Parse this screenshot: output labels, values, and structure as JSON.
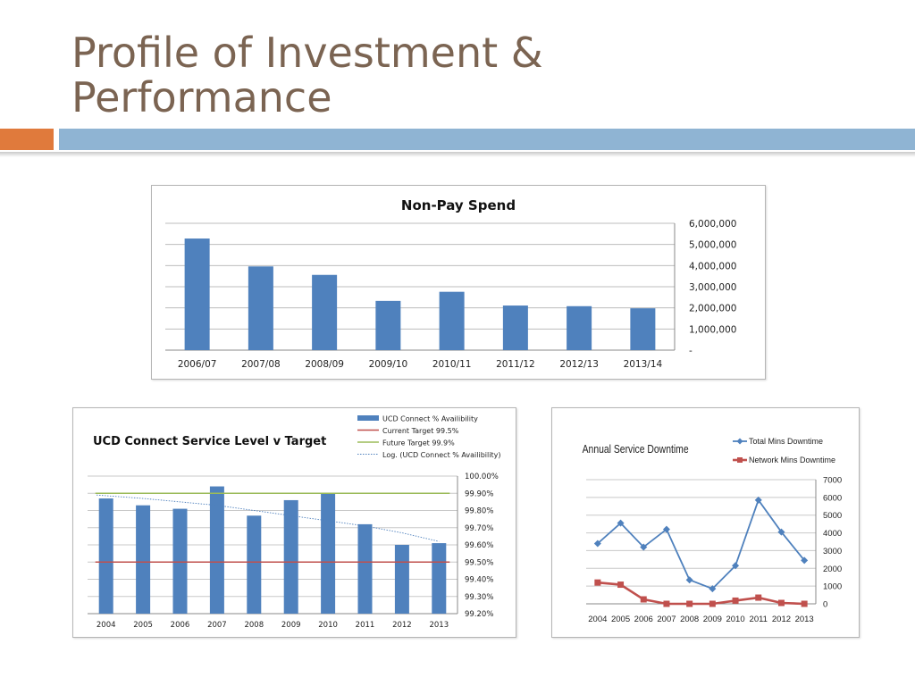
{
  "slide": {
    "title_line1": "Profile of Investment &",
    "title_line2": "Performance"
  },
  "colors": {
    "accent_orange": "#e07a3c",
    "accent_blue": "#8fb4d3",
    "bar_blue": "#4f81bd",
    "line_red": "#c0504d",
    "line_green": "#9bbb59",
    "title_brown": "#7b6452"
  },
  "chart_data": [
    {
      "type": "bar",
      "title": "Non-Pay Spend",
      "categories": [
        "2006/07",
        "2007/08",
        "2008/09",
        "2009/10",
        "2010/11",
        "2011/12",
        "2012/13",
        "2013/14"
      ],
      "values": [
        5280000,
        3960000,
        3560000,
        2330000,
        2760000,
        2110000,
        2080000,
        1980000
      ],
      "ylim": [
        0,
        6000000
      ],
      "yticks": [
        "6,000,000",
        "5,000,000",
        "4,000,000",
        "3,000,000",
        "2,000,000",
        "1,000,000",
        "-"
      ],
      "ytick_values": [
        6000000,
        5000000,
        4000000,
        3000000,
        2000000,
        1000000,
        0
      ],
      "y_axis_side": "right",
      "grid": true
    },
    {
      "type": "bar",
      "title": "UCD Connect Service Level v Target",
      "categories": [
        "2004",
        "2005",
        "2006",
        "2007",
        "2008",
        "2009",
        "2010",
        "2011",
        "2012",
        "2013"
      ],
      "series": [
        {
          "name": "UCD Connect % Availibility",
          "kind": "bar",
          "values": [
            99.87,
            99.83,
            99.81,
            99.94,
            99.77,
            99.86,
            99.9,
            99.72,
            99.6,
            99.61
          ]
        },
        {
          "name": "Current Target  99.5%",
          "kind": "line",
          "values": [
            99.5,
            99.5,
            99.5,
            99.5,
            99.5,
            99.5,
            99.5,
            99.5,
            99.5,
            99.5
          ]
        },
        {
          "name": "Future Target  99.9%",
          "kind": "line",
          "values": [
            99.9,
            99.9,
            99.9,
            99.9,
            99.9,
            99.9,
            99.9,
            99.9,
            99.9,
            99.9
          ]
        },
        {
          "name": "Log. (UCD Connect % Availibility)",
          "kind": "trendline",
          "values": [
            99.89,
            99.87,
            99.85,
            99.83,
            99.8,
            99.77,
            99.74,
            99.71,
            99.67,
            99.62
          ]
        }
      ],
      "ylim": [
        99.2,
        100.0
      ],
      "yticks": [
        "100.00%",
        "99.90%",
        "99.80%",
        "99.70%",
        "99.60%",
        "99.50%",
        "99.40%",
        "99.30%",
        "99.20%"
      ],
      "ytick_values": [
        100.0,
        99.9,
        99.8,
        99.7,
        99.6,
        99.5,
        99.4,
        99.3,
        99.2
      ],
      "y_axis_side": "right",
      "legend": "top-right",
      "grid": true
    },
    {
      "type": "line",
      "title": "Annual  Service  Downtime",
      "x": [
        "2004",
        "2005",
        "2006",
        "2007",
        "2008",
        "2009",
        "2010",
        "2011",
        "2012",
        "2013"
      ],
      "series": [
        {
          "name": "Total Mins Downtime",
          "values": [
            3400,
            4550,
            3200,
            4200,
            1350,
            850,
            2150,
            5850,
            4050,
            2450
          ]
        },
        {
          "name": "Network Mins Downtime",
          "values": [
            1200,
            1080,
            250,
            0,
            0,
            0,
            180,
            350,
            50,
            0
          ]
        }
      ],
      "ylim": [
        0,
        7000
      ],
      "yticks": [
        "7000",
        "6000",
        "5000",
        "4000",
        "3000",
        "2000",
        "1000",
        "0"
      ],
      "ytick_values": [
        7000,
        6000,
        5000,
        4000,
        3000,
        2000,
        1000,
        0
      ],
      "y_axis_side": "right",
      "legend": "top-right",
      "grid": true
    }
  ]
}
